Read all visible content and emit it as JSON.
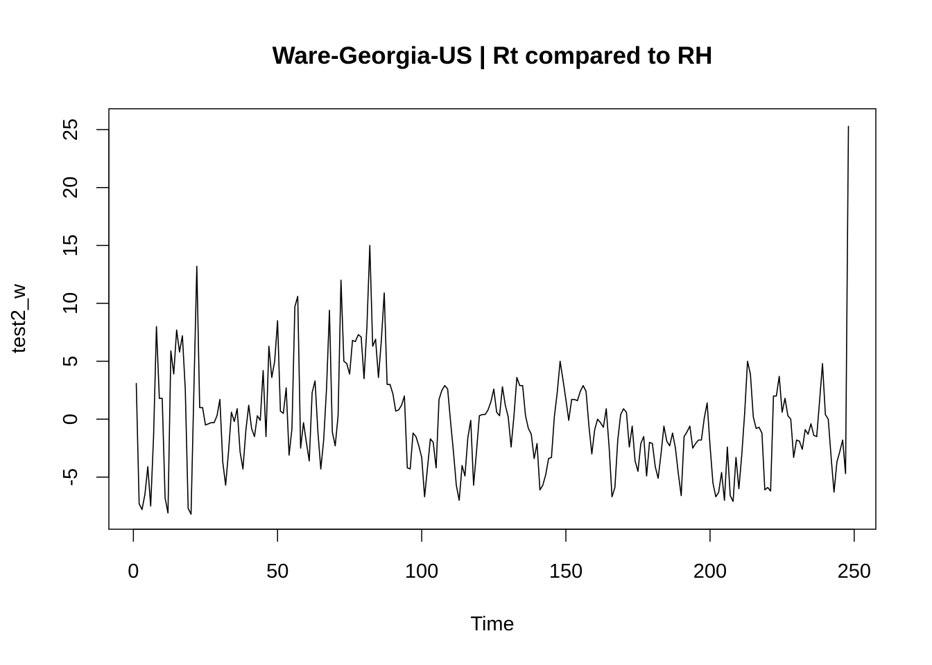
{
  "chart_data": {
    "type": "line",
    "title": "Ware-Georgia-US | Rt compared to RH",
    "xlabel": "Time",
    "ylabel": "test2_w",
    "xlim": [
      -8.5,
      257.5
    ],
    "ylim": [
      -9.5,
      26.8
    ],
    "xticks": [
      0,
      50,
      100,
      150,
      200,
      250
    ],
    "yticks": [
      -5,
      0,
      5,
      10,
      15,
      20,
      25
    ],
    "grid": false,
    "legend": "none",
    "line_color": "#000000",
    "series": [
      {
        "x": [
          1,
          2,
          3,
          4,
          5,
          6,
          7,
          8,
          9,
          10,
          11,
          12,
          13,
          14,
          15,
          16,
          17,
          18,
          19,
          20,
          21,
          22,
          23,
          24,
          25,
          26,
          27,
          28,
          29,
          30,
          31,
          32,
          33,
          34,
          35,
          36,
          37,
          38,
          39,
          40,
          41,
          42,
          43,
          44,
          45,
          46,
          47,
          48,
          49,
          50,
          51,
          52,
          53,
          54,
          55,
          56,
          57,
          58,
          59,
          60,
          61,
          62,
          63,
          64,
          65,
          66,
          67,
          68,
          69,
          70,
          71,
          72,
          73,
          74,
          75,
          76,
          77,
          78,
          79,
          80,
          81,
          82,
          83,
          84,
          85,
          86,
          87,
          88,
          89,
          90,
          91,
          92,
          93,
          94,
          95,
          96,
          97,
          98,
          99,
          100,
          101,
          102,
          103,
          104,
          105,
          106,
          107,
          108,
          109,
          110,
          111,
          112,
          113,
          114,
          115,
          116,
          117,
          118,
          119,
          120,
          121,
          122,
          123,
          124,
          125,
          126,
          127,
          128,
          129,
          130,
          131,
          132,
          133,
          134,
          135,
          136,
          137,
          138,
          139,
          140,
          141,
          142,
          143,
          144,
          145,
          146,
          147,
          148,
          149,
          150,
          151,
          152,
          153,
          154,
          155,
          156,
          157,
          158,
          159,
          160,
          161,
          162,
          163,
          164,
          165,
          166,
          167,
          168,
          169,
          170,
          171,
          172,
          173,
          174,
          175,
          176,
          177,
          178,
          179,
          180,
          181,
          182,
          183,
          184,
          185,
          186,
          187,
          188,
          189,
          190,
          191,
          192,
          193,
          194,
          195,
          196,
          197,
          198,
          199,
          200,
          201,
          202,
          203,
          204,
          205,
          206,
          207,
          208,
          209,
          210,
          211,
          212,
          213,
          214,
          215,
          216,
          217,
          218,
          219,
          220,
          221,
          222,
          223,
          224,
          225,
          226,
          227,
          228,
          229,
          230,
          231,
          232,
          233,
          234,
          235,
          236,
          237,
          238,
          239,
          240,
          241,
          242,
          243,
          244,
          245,
          246,
          247,
          248
        ],
        "values": [
          3.1,
          -7.3,
          -7.8,
          -6.5,
          -4.1,
          -7.5,
          -1.5,
          8.0,
          1.8,
          1.8,
          -6.8,
          -8.1,
          5.9,
          3.9,
          7.7,
          5.8,
          7.2,
          2.6,
          -7.7,
          -8.2,
          2.7,
          13.2,
          1.0,
          1.0,
          -0.5,
          -0.4,
          -0.3,
          -0.3,
          0.3,
          1.7,
          -3.7,
          -5.7,
          -2.8,
          0.6,
          -0.2,
          0.9,
          -2.8,
          -4.3,
          -1.0,
          1.2,
          -0.8,
          -1.5,
          0.3,
          -0.1,
          4.2,
          -1.5,
          6.3,
          3.6,
          5.0,
          8.5,
          0.7,
          0.5,
          2.7,
          -3.1,
          -0.8,
          9.7,
          10.6,
          -2.5,
          -0.3,
          -2.0,
          -3.6,
          2.3,
          3.3,
          -1.1,
          -4.3,
          -1.8,
          2.7,
          9.4,
          -1.1,
          -2.3,
          0.3,
          12.0,
          5.0,
          4.8,
          3.9,
          6.8,
          6.7,
          7.3,
          7.1,
          3.5,
          8.0,
          15.0,
          6.3,
          6.9,
          3.6,
          6.8,
          10.9,
          3.0,
          3.0,
          2.2,
          0.7,
          0.8,
          1.2,
          2.0,
          -4.2,
          -4.3,
          -1.2,
          -1.5,
          -2.3,
          -3.3,
          -6.7,
          -4.2,
          -1.7,
          -2.0,
          -4.2,
          1.7,
          2.5,
          2.9,
          2.6,
          -0.2,
          -2.8,
          -5.7,
          -7.0,
          -4.0,
          -4.9,
          -1.6,
          -0.1,
          -5.7,
          -2.8,
          0.3,
          0.4,
          0.4,
          0.8,
          1.5,
          2.6,
          0.6,
          0.3,
          2.8,
          1.2,
          0.2,
          -2.4,
          0.3,
          3.6,
          2.9,
          2.9,
          0.3,
          -0.8,
          -1.3,
          -3.4,
          -2.1,
          -6.1,
          -5.7,
          -4.8,
          -3.4,
          -3.3,
          0.2,
          2.3,
          5.0,
          3.4,
          1.7,
          -0.1,
          1.7,
          1.7,
          1.6,
          2.4,
          2.9,
          2.4,
          -0.6,
          -3.0,
          -0.9,
          0.0,
          -0.3,
          -0.7,
          0.9,
          -2.4,
          -6.7,
          -5.9,
          -1.8,
          0.4,
          0.9,
          0.6,
          -2.4,
          -0.6,
          -3.6,
          -4.5,
          -2.1,
          -1.5,
          -4.9,
          -2.0,
          -2.1,
          -4.1,
          -5.1,
          -3.0,
          -0.6,
          -1.9,
          -2.3,
          -1.2,
          -2.5,
          -4.7,
          -6.6,
          -1.5,
          -1.1,
          -0.6,
          -2.5,
          -2.1,
          -1.8,
          -1.8,
          0.1,
          1.4,
          -2.3,
          -5.5,
          -6.7,
          -6.3,
          -4.6,
          -7.0,
          -2.4,
          -6.6,
          -7.1,
          -3.3,
          -6.0,
          -3.1,
          0.5,
          5.0,
          3.9,
          0.2,
          -0.8,
          -0.7,
          -1.2,
          -6.1,
          -5.9,
          -6.2,
          2.0,
          2.0,
          3.7,
          0.6,
          1.8,
          0.3,
          0.0,
          -3.3,
          -1.8,
          -1.9,
          -2.6,
          -0.9,
          -1.3,
          -0.4,
          -1.4,
          -1.5,
          1.6,
          4.8,
          0.4,
          0.0,
          -3.3,
          -6.3,
          -3.7,
          -2.8,
          -1.8,
          -4.7,
          25.3
        ]
      }
    ]
  }
}
